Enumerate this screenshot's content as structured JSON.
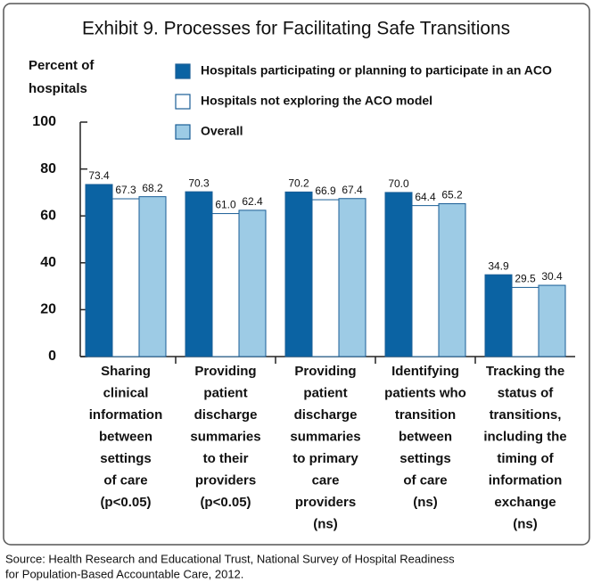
{
  "chart_data": {
    "type": "bar",
    "title": "Exhibit 9. Processes for Facilitating Safe Transitions",
    "y_label": [
      "Percent of",
      "hospitals"
    ],
    "categories": [
      [
        "Sharing",
        "clinical",
        "information",
        "between",
        "settings",
        "of care",
        "(p<0.05)"
      ],
      [
        "Providing",
        "patient",
        "discharge",
        "summaries",
        "to their",
        "providers",
        "(p<0.05)"
      ],
      [
        "Providing",
        "patient",
        "discharge",
        "summaries",
        "to primary",
        "care",
        "providers",
        "(ns)"
      ],
      [
        "Identifying",
        "patients who",
        "transition",
        "between",
        "settings",
        "of care",
        "(ns)"
      ],
      [
        "Tracking the",
        "status of",
        "transitions,",
        "including the",
        "timing of",
        "information",
        "exchange",
        "(ns)"
      ]
    ],
    "series": [
      {
        "name": "Hospitals participating or planning to participate in an ACO",
        "color": "#0b63a3",
        "values": [
          73.4,
          70.3,
          70.2,
          70.0,
          34.9
        ],
        "value_labels": [
          "73.4",
          "70.3",
          "70.2",
          "70.0",
          "34.9"
        ]
      },
      {
        "name": "Hospitals not exploring the ACO model",
        "color": "#ffffff",
        "values": [
          67.3,
          61.0,
          66.9,
          64.4,
          29.5
        ],
        "value_labels": [
          "67.3",
          "61.0",
          "66.9",
          "64.4",
          "29.5"
        ]
      },
      {
        "name": "Overall",
        "color": "#9dcbe5",
        "values": [
          68.2,
          62.4,
          67.4,
          65.2,
          30.4
        ],
        "value_labels": [
          "68.2",
          "62.4",
          "67.4",
          "65.2",
          "30.4"
        ]
      }
    ],
    "ylim": [
      0,
      100
    ],
    "yticks": [
      0,
      20,
      40,
      60,
      80,
      100
    ],
    "source": [
      "Source: Health Research and Educational Trust, National Survey of Hospital Readiness",
      "for Population-Based Accountable Care, 2012."
    ]
  }
}
